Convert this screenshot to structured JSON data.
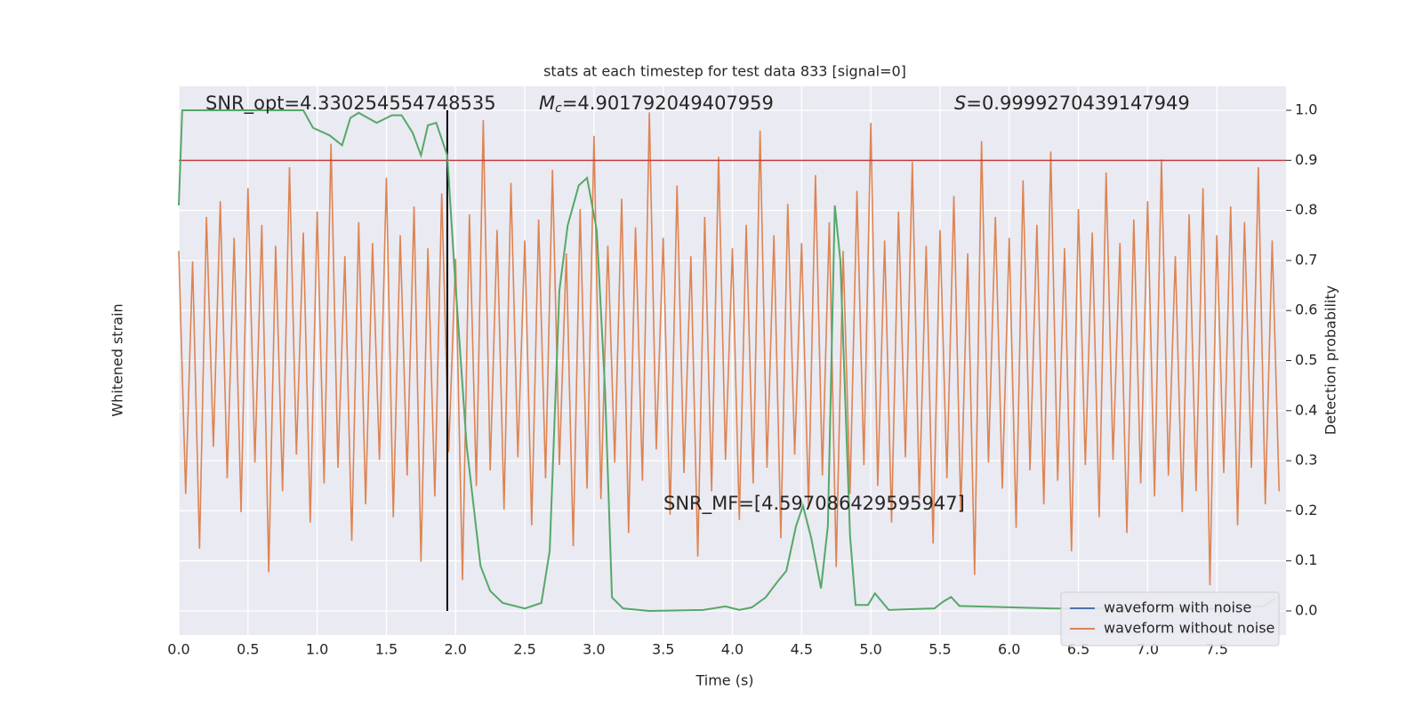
{
  "chart_data": {
    "type": "line",
    "title": "stats at each timestep for test data 833 [signal=0]",
    "x_label": "Time (s)",
    "y_label": "Whitened strain",
    "y2_label": "Detection probability",
    "xlim": [
      0,
      8
    ],
    "xticks": [
      {
        "value": 0,
        "label": "0.0"
      },
      0.5,
      {
        "value": 1,
        "label": "1.0"
      },
      1.5,
      {
        "value": 2,
        "label": "2.0"
      },
      2.5,
      {
        "value": 3,
        "label": "3.0"
      },
      3.5,
      {
        "value": 4,
        "label": "4.0"
      },
      4.5,
      {
        "value": 5,
        "label": "5.0"
      },
      5.5,
      {
        "value": 6,
        "label": "6.0"
      },
      6.5,
      {
        "value": 7,
        "label": "7.0"
      },
      7.5
    ],
    "ylim": [
      -1.05,
      1.05
    ],
    "y2lim": [
      -0.048,
      1.048
    ],
    "y2ticks": [
      {
        "value": 0,
        "label": "0.0"
      },
      0.1,
      0.2,
      0.3,
      0.4,
      0.5,
      0.6,
      0.7,
      0.8,
      0.9,
      {
        "value": 1,
        "label": "1.0"
      }
    ],
    "grid": true,
    "background": "#eaeaf2",
    "legend": {
      "loc": "lower right",
      "entries": [
        {
          "name": "waveform with noise",
          "color": "#4c72b0"
        }
      ]
    },
    "series": [
      {
        "name": "waveform without noise",
        "color": "#dd8452",
        "x": [
          0,
          0.05,
          0.1,
          0.15,
          0.2,
          0.25,
          0.3,
          0.35,
          0.4,
          0.45,
          0.5,
          0.55,
          0.6,
          0.65,
          0.7,
          0.75,
          0.8,
          0.85,
          0.9,
          0.95,
          1,
          1.05,
          1.1,
          1.15,
          1.2,
          1.25,
          1.3,
          1.35,
          1.4,
          1.45,
          1.5,
          1.55,
          1.6,
          1.65,
          1.7,
          1.75,
          1.8,
          1.85,
          1.9,
          1.95,
          2,
          2.05,
          2.1,
          2.15,
          2.2,
          2.25,
          2.3,
          2.35,
          2.4,
          2.45,
          2.5,
          2.55,
          2.6,
          2.65,
          2.7,
          2.75,
          2.8,
          2.85,
          2.9,
          2.95,
          3,
          3.05,
          3.1,
          3.15,
          3.2,
          3.25,
          3.3,
          3.35,
          3.4,
          3.45,
          3.5,
          3.55,
          3.6,
          3.65,
          3.7,
          3.75,
          3.8,
          3.85,
          3.9,
          3.95,
          4,
          4.05,
          4.1,
          4.15,
          4.2,
          4.25,
          4.3,
          4.35,
          4.4,
          4.45,
          4.5,
          4.55,
          4.6,
          4.65,
          4.7,
          4.75,
          4.8,
          4.85,
          4.9,
          4.95,
          5,
          5.05,
          5.1,
          5.15,
          5.2,
          5.25,
          5.3,
          5.35,
          5.4,
          5.45,
          5.5,
          5.55,
          5.6,
          5.65,
          5.7,
          5.75,
          5.8,
          5.85,
          5.9,
          5.95,
          6,
          6.05,
          6.1,
          6.15,
          6.2,
          6.25,
          6.3,
          6.35,
          6.4,
          6.45,
          6.5,
          6.55,
          6.6,
          6.65,
          6.7,
          6.75,
          6.8,
          6.85,
          6.9,
          6.95,
          7,
          7.05,
          7.1,
          7.15,
          7.2,
          7.25,
          7.3,
          7.35,
          7.4,
          7.45,
          7.5,
          7.55,
          7.6,
          7.65,
          7.7,
          7.75,
          7.8,
          7.85,
          7.9,
          7.95
        ],
        "values": [
          0.42,
          -0.51,
          0.38,
          -0.72,
          0.55,
          -0.33,
          0.61,
          -0.45,
          0.47,
          -0.58,
          0.66,
          -0.39,
          0.52,
          -0.81,
          0.44,
          -0.5,
          0.74,
          -0.36,
          0.49,
          -0.62,
          0.57,
          -0.47,
          0.83,
          -0.41,
          0.4,
          -0.69,
          0.53,
          -0.55,
          0.45,
          -0.38,
          0.7,
          -0.6,
          0.48,
          -0.44,
          0.59,
          -0.77,
          0.43,
          -0.52,
          0.64,
          -0.35,
          0.39,
          -0.84,
          0.56,
          -0.48,
          0.92,
          -0.42,
          0.5,
          -0.57,
          0.68,
          -0.37,
          0.46,
          -0.63,
          0.54,
          -0.45,
          0.73,
          -0.4,
          0.41,
          -0.71,
          0.58,
          -0.49,
          0.86,
          -0.53,
          0.44,
          -0.39,
          0.62,
          -0.66,
          0.51,
          -0.46,
          0.95,
          -0.34,
          0.47,
          -0.59,
          0.67,
          -0.43,
          0.4,
          -0.75,
          0.55,
          -0.5,
          0.78,
          -0.38,
          0.43,
          -0.61,
          0.52,
          -0.47,
          0.88,
          -0.41,
          0.48,
          -0.68,
          0.6,
          -0.36,
          0.45,
          -0.56,
          0.71,
          -0.44,
          0.53,
          -0.79,
          0.42,
          -0.51,
          0.65,
          -0.4,
          0.91,
          -0.48,
          0.46,
          -0.62,
          0.57,
          -0.37,
          0.76,
          -0.53,
          0.44,
          -0.7,
          0.5,
          -0.45,
          0.63,
          -0.58,
          0.41,
          -0.82,
          0.84,
          -0.39,
          0.55,
          -0.49,
          0.47,
          -0.64,
          0.69,
          -0.42,
          0.52,
          -0.55,
          0.8,
          -0.46,
          0.43,
          -0.73,
          0.58,
          -0.4,
          0.49,
          -0.6,
          0.72,
          -0.38,
          0.45,
          -0.66,
          0.54,
          -0.47,
          0.61,
          -0.52,
          0.77,
          -0.44,
          0.4,
          -0.58,
          0.56,
          -0.5,
          0.66,
          -0.86,
          0.48,
          -0.43,
          0.59,
          -0.63,
          0.53,
          -0.41,
          0.74,
          -0.55,
          0.46,
          -0.5
        ]
      }
    ],
    "probability": {
      "axis": "y2",
      "color": "#55a868",
      "x": [
        0,
        0.025,
        0.1,
        0.9,
        0.97,
        1.09,
        1.18,
        1.24,
        1.3,
        1.43,
        1.54,
        1.61,
        1.69,
        1.75,
        1.8,
        1.86,
        1.94,
        1.99,
        2.08,
        2.18,
        2.25,
        2.34,
        2.5,
        2.62,
        2.68,
        2.75,
        2.81,
        2.89,
        2.95,
        3.02,
        3.08,
        3.13,
        3.21,
        3.4,
        3.79,
        3.95,
        4.05,
        4.14,
        4.24,
        4.33,
        4.39,
        4.46,
        4.51,
        4.57,
        4.64,
        4.69,
        4.74,
        4.78,
        4.85,
        4.89,
        4.98,
        5.03,
        5.13,
        5.46,
        5.52,
        5.58,
        5.64,
        6.3,
        7.52,
        7.68,
        7.84,
        7.92
      ],
      "values": [
        0.81,
        1.0,
        1.0,
        1.0,
        0.965,
        0.95,
        0.93,
        0.985,
        0.995,
        0.975,
        0.99,
        0.99,
        0.955,
        0.91,
        0.97,
        0.975,
        0.91,
        0.69,
        0.33,
        0.09,
        0.04,
        0.016,
        0.005,
        0.016,
        0.12,
        0.64,
        0.77,
        0.85,
        0.865,
        0.76,
        0.44,
        0.027,
        0.005,
        0.0,
        0.002,
        0.009,
        0.002,
        0.007,
        0.027,
        0.06,
        0.08,
        0.17,
        0.21,
        0.145,
        0.045,
        0.17,
        0.81,
        0.7,
        0.15,
        0.012,
        0.012,
        0.035,
        0.002,
        0.005,
        0.018,
        0.028,
        0.01,
        0.005,
        0.004,
        0.01,
        0.009,
        0.025
      ]
    },
    "threshold": {
      "value": 0.9,
      "axis": "y2",
      "color": "#c03d3e"
    },
    "marker_line": {
      "x": 1.94,
      "from": 0,
      "to": 1,
      "axis": "y2",
      "color": "#000000"
    },
    "annotations": [
      {
        "text": "SNR_opt=4.330254554748535"
      },
      {
        "symbol": "M",
        "subscript": "c",
        "text": "=4.901792049407959"
      },
      {
        "symbol": "S",
        "text": "=0.9999270439147949"
      },
      {
        "text": "SNR_MF=[4.597086429595947]"
      }
    ]
  }
}
